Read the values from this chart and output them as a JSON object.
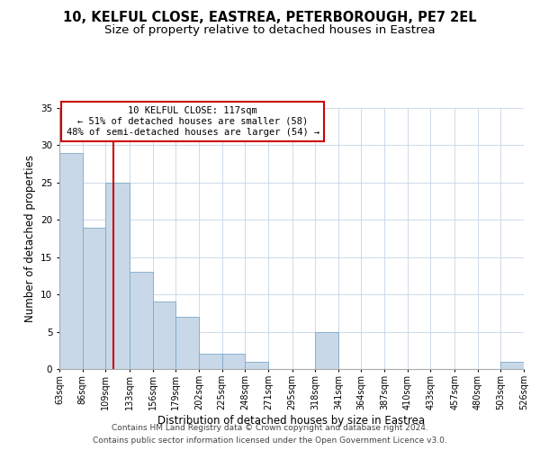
{
  "title_line1": "10, KELFUL CLOSE, EASTREA, PETERBOROUGH, PE7 2EL",
  "title_line2": "Size of property relative to detached houses in Eastrea",
  "xlabel": "Distribution of detached houses by size in Eastrea",
  "ylabel": "Number of detached properties",
  "bin_edges": [
    63,
    86,
    109,
    133,
    156,
    179,
    202,
    225,
    248,
    271,
    295,
    318,
    341,
    364,
    387,
    410,
    433,
    457,
    480,
    503,
    526
  ],
  "bar_heights": [
    29,
    19,
    25,
    13,
    9,
    7,
    2,
    2,
    1,
    0,
    0,
    5,
    0,
    0,
    0,
    0,
    0,
    0,
    0,
    1
  ],
  "bar_color": "#c8d8e8",
  "bar_edge_color": "#7aaac8",
  "property_size": 117,
  "vline_color": "#cc0000",
  "ylim": [
    0,
    35
  ],
  "annotation_title": "10 KELFUL CLOSE: 117sqm",
  "annotation_line1": "← 51% of detached houses are smaller (58)",
  "annotation_line2": "48% of semi-detached houses are larger (54) →",
  "annotation_box_color": "#ffffff",
  "annotation_box_edge": "#cc0000",
  "footer_line1": "Contains HM Land Registry data © Crown copyright and database right 2024.",
  "footer_line2": "Contains public sector information licensed under the Open Government Licence v3.0.",
  "bg_color": "#ffffff",
  "grid_color": "#c5d5e5",
  "title_fontsize": 10.5,
  "subtitle_fontsize": 9.5,
  "axis_label_fontsize": 8.5,
  "tick_fontsize": 7,
  "annot_fontsize": 7.5,
  "footer_fontsize": 6.5
}
